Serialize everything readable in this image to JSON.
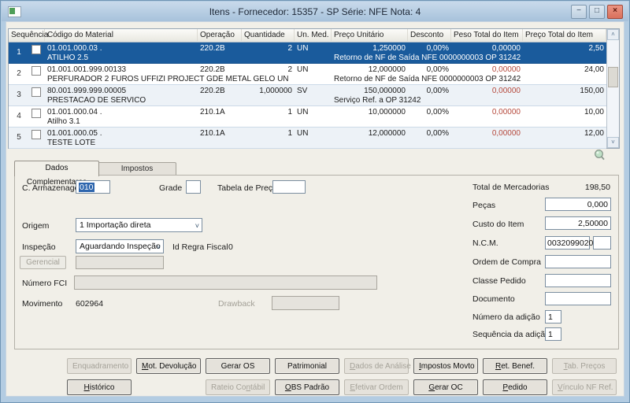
{
  "window": {
    "title": "Itens - Fornecedor: 15357 - SP Série: NFE   Nota: 4",
    "minimize_glyph": "−",
    "maximize_glyph": "□",
    "close_glyph": "×"
  },
  "grid": {
    "columns": [
      "Sequência",
      "Código do Material",
      "Operação",
      "Quantidade",
      "Un. Med.",
      "Preço Unitário",
      "Desconto",
      "Peso Total do Item",
      "Preço Total do Item"
    ],
    "rows": [
      {
        "seq": "1",
        "code": "01.001.000.03 .",
        "desc": "ATILHO 2.5",
        "op": "220.2B",
        "qty": "2",
        "un": "UN",
        "unit_price": "1,250000",
        "discount": "0,00%",
        "weight": "0,00000",
        "total": "2,50",
        "ref": "Retorno de NF de Saída NFE  0000000003 OP 31242",
        "selected": true
      },
      {
        "seq": "2",
        "code": "01.001.001.999.00133",
        "desc": "PERFURADOR 2 FUROS UFFIZI PROJECT GDE METAL GELO UN",
        "op": "220.2B",
        "qty": "2",
        "un": "UN",
        "unit_price": "12,000000",
        "discount": "0,00%",
        "weight": "0,00000",
        "total": "24,00",
        "ref": "Retorno de NF de Saída NFE  0000000003 OP 31242",
        "selected": false
      },
      {
        "seq": "3",
        "code": "80.001.999.999.00005",
        "desc": "PRESTACAO DE SERVICO",
        "op": "220.2B",
        "qty": "1,000000",
        "un": "SV",
        "unit_price": "150,000000",
        "discount": "0,00%",
        "weight": "0,00000",
        "total": "150,00",
        "ref": "Serviço Ref. a OP 31242",
        "selected": false
      },
      {
        "seq": "4",
        "code": "01.001.000.04 .",
        "desc": "Atilho 3.1",
        "op": "210.1A",
        "qty": "1",
        "un": "UN",
        "unit_price": "10,000000",
        "discount": "0,00%",
        "weight": "0,00000",
        "total": "10,00",
        "ref": "",
        "selected": false
      },
      {
        "seq": "5",
        "code": "01.001.000.05 .",
        "desc": "TESTE LOTE",
        "op": "210.1A",
        "qty": "1",
        "un": "UN",
        "unit_price": "12,000000",
        "discount": "0,00%",
        "weight": "0,00000",
        "total": "12,00",
        "ref": "",
        "selected": false
      }
    ]
  },
  "tabs": {
    "active": "Dados Complementares",
    "inactive": "Impostos"
  },
  "detail": {
    "c_armazenagem_label": "C. Armazenagem",
    "c_armazenagem_value": "010",
    "grade_label": "Grade",
    "grade_value": "",
    "tabela_preco_label": "Tabela de Preço",
    "tabela_preco_value": "",
    "origem_label": "Origem",
    "origem_value": "1 Importação direta",
    "inspecao_label": "Inspeção",
    "inspecao_value": "Aguardando Inspeção",
    "id_regra_fiscal_label": "Id Regra Fiscal",
    "id_regra_fiscal_value": "0",
    "gerencial_button": "Gerencial",
    "gerencial_value": "",
    "numero_fci_label": "Número FCI",
    "numero_fci_value": "",
    "movimento_label": "Movimento",
    "movimento_value": "602964",
    "drawback_label": "Drawback",
    "drawback_value": ""
  },
  "totals": {
    "total_mercadorias_label": "Total de Mercadorias",
    "total_mercadorias_value": "198,50",
    "pecas_label": "Peças",
    "pecas_value": "0,000",
    "custo_item_label": "Custo do Item",
    "custo_item_value": "2,50000",
    "ncm_label": "N.C.M.",
    "ncm_value": "0032099020",
    "ncm_extra_value": "",
    "ordem_compra_label": "Ordem de Compra",
    "ordem_compra_value": "",
    "classe_pedido_label": "Classe Pedido",
    "classe_pedido_value": "",
    "documento_label": "Documento",
    "documento_value": "",
    "numero_adicao_label": "Número da adição",
    "numero_adicao_value": "1",
    "sequencia_adicao_label": "Sequência da adição",
    "sequencia_adicao_value": "1"
  },
  "footer": {
    "row1": [
      {
        "label": "Enquadramento",
        "enabled": false,
        "u": ""
      },
      {
        "label": "Mot. Devolução",
        "enabled": true,
        "u": "M"
      },
      {
        "label": "Gerar OS",
        "enabled": true,
        "u": ""
      },
      {
        "label": "Patrimonial",
        "enabled": true,
        "u": ""
      },
      {
        "label": "Dados de Análise",
        "enabled": false,
        "u": "D"
      },
      {
        "label": "Impostos Movto",
        "enabled": true,
        "u": "I"
      },
      {
        "label": "Ret. Benef.",
        "enabled": true,
        "u": "R"
      },
      {
        "label": "Tab. Preços",
        "enabled": false,
        "u": "T"
      }
    ],
    "row2": [
      {
        "label": "Histórico",
        "enabled": true,
        "u": "H"
      },
      {
        "label": "",
        "enabled": false,
        "u": ""
      },
      {
        "label": "Rateio Contábil",
        "enabled": false,
        "u": "n"
      },
      {
        "label": "OBS Padrão",
        "enabled": true,
        "u": "O"
      },
      {
        "label": "Efetivar Ordem",
        "enabled": false,
        "u": "E"
      },
      {
        "label": "Gerar OC",
        "enabled": true,
        "u": "G"
      },
      {
        "label": "Pedido",
        "enabled": true,
        "u": "P"
      },
      {
        "label": "Vínculo NF Ref.",
        "enabled": false,
        "u": "V"
      }
    ]
  },
  "colors": {
    "selected_row": "#1a5b9c",
    "negative_value": "#b5493c",
    "titlebar": "#b3cce2",
    "close_button": "#d9705c",
    "selection_highlight": "#2e66ae"
  }
}
